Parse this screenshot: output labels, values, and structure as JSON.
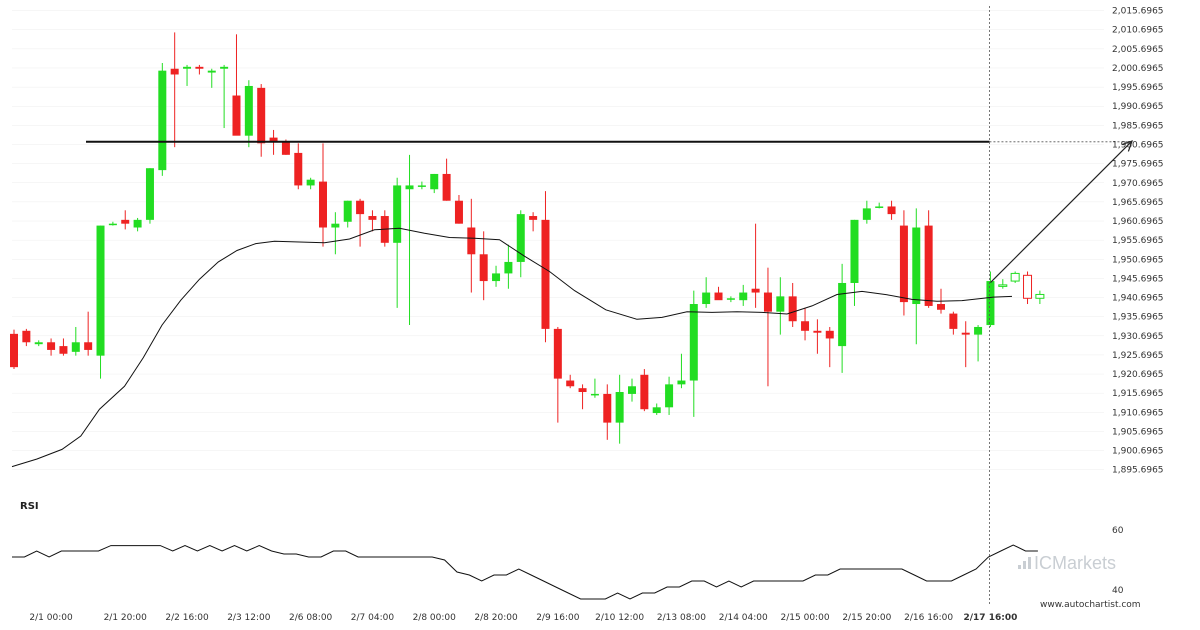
{
  "chart_data": {
    "type": "candlestick",
    "price_axis": {
      "labels": [
        "2,015.6965",
        "2,010.6965",
        "2,005.6965",
        "2,000.6965",
        "1,995.6965",
        "1,990.6965",
        "1,985.6965",
        "1,980.6965",
        "1,975.6965",
        "1,970.6965",
        "1,965.6965",
        "1,960.6965",
        "1,955.6965",
        "1,950.6965",
        "1,945.6965",
        "1,940.6965",
        "1,935.6965",
        "1,930.6965",
        "1,925.6965",
        "1,920.6965",
        "1,915.6965",
        "1,910.6965",
        "1,905.6965",
        "1,900.6965",
        "1,895.6965"
      ],
      "min": 1893.0,
      "max": 2016.9
    },
    "time_axis": {
      "labels": [
        "2/1 00:00",
        "2/1 20:00",
        "2/2 16:00",
        "2/3 12:00",
        "2/6 08:00",
        "2/7 04:00",
        "2/8 00:00",
        "2/8 20:00",
        "2/9 16:00",
        "2/10 12:00",
        "2/13 08:00",
        "2/14 04:00",
        "2/15 00:00",
        "2/15 20:00",
        "2/16 16:00",
        "2/17 16:00"
      ],
      "label_index": [
        3,
        9,
        14,
        19,
        24,
        29,
        34,
        39,
        44,
        49,
        54,
        59,
        64,
        69,
        74,
        79
      ],
      "highlight": "2/17 16:00"
    },
    "candles": [
      [
        1931.2,
        1932.3,
        1922.0,
        1922.5
      ],
      [
        1932.0,
        1932.5,
        1928.0,
        1929.0
      ],
      [
        1928.5,
        1929.5,
        1928.0,
        1929.0
      ],
      [
        1929.0,
        1930.0,
        1925.5,
        1927.0
      ],
      [
        1928.0,
        1930.0,
        1925.5,
        1926.0
      ],
      [
        1926.5,
        1933.0,
        1925.5,
        1929.0
      ],
      [
        1929.0,
        1937.0,
        1925.5,
        1927.0
      ],
      [
        1925.5,
        1959.5,
        1919.5,
        1959.5
      ],
      [
        1960.0,
        1960.5,
        1959.5,
        1960.0
      ],
      [
        1961.0,
        1963.5,
        1958.5,
        1960.0
      ],
      [
        1959.0,
        1961.5,
        1958.0,
        1961.0
      ],
      [
        1961.0,
        1974.5,
        1960.0,
        1974.5
      ],
      [
        1974.0,
        2002.0,
        1972.5,
        2000.0
      ],
      [
        2000.5,
        2010.0,
        1980.0,
        1999.0
      ],
      [
        2000.5,
        2001.5,
        1996.0,
        2001.0
      ],
      [
        2001.0,
        2001.5,
        1999.0,
        2000.5
      ],
      [
        1999.5,
        2000.5,
        1995.5,
        2000.0
      ],
      [
        2000.5,
        2001.5,
        1985.0,
        2001.0
      ],
      [
        1993.5,
        2009.5,
        1984.0,
        1983.0
      ],
      [
        1983.0,
        1997.5,
        1980.0,
        1996.0
      ],
      [
        1995.5,
        1996.5,
        1977.5,
        1981.0
      ],
      [
        1982.5,
        1984.5,
        1978.0,
        1981.5
      ],
      [
        1981.5,
        1982.0,
        1978.0,
        1978.0
      ],
      [
        1978.5,
        1981.0,
        1969.0,
        1970.0
      ],
      [
        1970.0,
        1972.0,
        1969.0,
        1971.5
      ],
      [
        1971.0,
        1981.0,
        1954.0,
        1959.0
      ],
      [
        1959.0,
        1963.0,
        1952.0,
        1960.0
      ],
      [
        1960.5,
        1966.0,
        1959.0,
        1966.0
      ],
      [
        1966.0,
        1966.5,
        1954.0,
        1962.5
      ],
      [
        1962.0,
        1963.5,
        1958.0,
        1961.0
      ],
      [
        1962.0,
        1963.5,
        1954.0,
        1955.0
      ],
      [
        1955.0,
        1972.0,
        1938.0,
        1970.0
      ],
      [
        1969.0,
        1978.0,
        1933.5,
        1970.0
      ],
      [
        1970.0,
        1971.0,
        1969.0,
        1970.0
      ],
      [
        1969.0,
        1973.0,
        1968.0,
        1973.0
      ],
      [
        1973.0,
        1977.0,
        1966.0,
        1966.0
      ],
      [
        1966.0,
        1967.5,
        1960.0,
        1960.0
      ],
      [
        1959.0,
        1966.5,
        1942.0,
        1952.0
      ],
      [
        1952.0,
        1958.0,
        1940.0,
        1945.0
      ],
      [
        1945.0,
        1949.0,
        1943.5,
        1947.0
      ],
      [
        1947.0,
        1954.5,
        1943.0,
        1950.0
      ],
      [
        1950.0,
        1963.5,
        1946.0,
        1962.5
      ],
      [
        1962.0,
        1963.0,
        1958.0,
        1961.0
      ],
      [
        1961.0,
        1968.5,
        1929.0,
        1932.5
      ],
      [
        1932.5,
        1933.0,
        1908.0,
        1919.5
      ],
      [
        1919.0,
        1920.5,
        1917.0,
        1917.5
      ],
      [
        1917.0,
        1918.0,
        1911.5,
        1916.0
      ],
      [
        1915.5,
        1919.5,
        1914.5,
        1915.5
      ],
      [
        1915.5,
        1918.0,
        1903.5,
        1908.0
      ],
      [
        1908.0,
        1920.5,
        1902.5,
        1916.0
      ],
      [
        1915.5,
        1919.5,
        1913.5,
        1917.5
      ],
      [
        1920.5,
        1922.0,
        1911.0,
        1911.5
      ],
      [
        1910.5,
        1913.0,
        1910.0,
        1912.0
      ],
      [
        1912.0,
        1920.0,
        1910.0,
        1918.0
      ],
      [
        1918.0,
        1926.0,
        1917.0,
        1919.0
      ],
      [
        1919.0,
        1942.5,
        1909.5,
        1939.0
      ],
      [
        1939.0,
        1946.0,
        1938.0,
        1942.0
      ],
      [
        1942.0,
        1943.5,
        1940.5,
        1940.0
      ],
      [
        1940.5,
        1941.0,
        1939.5,
        1940.5
      ],
      [
        1940.0,
        1944.0,
        1938.5,
        1942.0
      ],
      [
        1943.0,
        1960.0,
        1938.0,
        1942.0
      ],
      [
        1942.0,
        1948.5,
        1917.5,
        1937.0
      ],
      [
        1937.0,
        1946.0,
        1931.0,
        1941.0
      ],
      [
        1941.0,
        1944.5,
        1933.0,
        1934.5
      ],
      [
        1934.5,
        1938.0,
        1929.5,
        1932.0
      ],
      [
        1932.0,
        1935.0,
        1926.0,
        1931.5
      ],
      [
        1932.0,
        1933.0,
        1922.5,
        1930.0
      ],
      [
        1928.0,
        1949.5,
        1921.0,
        1944.5
      ],
      [
        1944.5,
        1961.0,
        1938.5,
        1961.0
      ],
      [
        1961.0,
        1966.0,
        1960.0,
        1964.0
      ],
      [
        1964.5,
        1965.5,
        1964.0,
        1964.5
      ],
      [
        1964.5,
        1966.0,
        1961.0,
        1962.5
      ],
      [
        1959.5,
        1963.5,
        1936.0,
        1939.5
      ],
      [
        1939.0,
        1964.0,
        1928.5,
        1959.0
      ],
      [
        1959.5,
        1963.5,
        1938.0,
        1938.5
      ],
      [
        1939.0,
        1943.0,
        1936.5,
        1937.5
      ],
      [
        1936.5,
        1937.0,
        1931.0,
        1932.5
      ],
      [
        1931.5,
        1934.5,
        1922.5,
        1931.0
      ],
      [
        1931.0,
        1933.5,
        1924.0,
        1933.0
      ],
      [
        1933.5,
        1947.5,
        1933.0,
        1945.0
      ],
      [
        1944.0,
        1945.5,
        1943.0,
        1944.0
      ],
      [
        1945.0,
        1947.5,
        1944.5,
        1947.0
      ],
      [
        1946.5,
        1947.5,
        1939.0,
        1940.5
      ],
      [
        1940.5,
        1942.5,
        1939.0,
        1941.5
      ]
    ],
    "moving_average": [
      [
        0,
        1896.5
      ],
      [
        4,
        1898.5
      ],
      [
        8,
        1901.0
      ],
      [
        11,
        1904.5
      ],
      [
        14,
        1911.5
      ],
      [
        18,
        1917.5
      ],
      [
        21,
        1925.0
      ],
      [
        24,
        1933.5
      ],
      [
        27,
        1940.0
      ],
      [
        30,
        1945.5
      ],
      [
        33,
        1950.0
      ],
      [
        36,
        1953.0
      ],
      [
        39,
        1954.8
      ],
      [
        42,
        1955.4
      ],
      [
        46,
        1955.2
      ],
      [
        50,
        1955.0
      ],
      [
        54,
        1956.0
      ],
      [
        58,
        1958.4
      ],
      [
        62,
        1958.8
      ],
      [
        66,
        1957.5
      ],
      [
        70,
        1956.4
      ],
      [
        74,
        1956.2
      ],
      [
        78,
        1955.8
      ],
      [
        82,
        1951.5
      ],
      [
        86,
        1947.5
      ],
      [
        90,
        1942.5
      ],
      [
        95,
        1937.5
      ],
      [
        100,
        1935.0
      ],
      [
        104,
        1935.5
      ],
      [
        108,
        1937.0
      ],
      [
        112,
        1936.8
      ],
      [
        116,
        1937.0
      ],
      [
        120,
        1936.8
      ],
      [
        124,
        1936.4
      ],
      [
        128,
        1938.5
      ],
      [
        132,
        1941.5
      ],
      [
        136,
        1942.3
      ],
      [
        140,
        1941.4
      ],
      [
        144,
        1940.2
      ],
      [
        148,
        1939.7
      ],
      [
        152,
        1939.9
      ],
      [
        157,
        1940.8
      ],
      [
        160,
        1941.0
      ]
    ],
    "resistance_level": 1981.4,
    "forecast": {
      "from_index": 79,
      "from_price": 1944.6,
      "to_price": 1981.6
    },
    "rsi": {
      "label": "RSI",
      "ticks": [
        60,
        40
      ],
      "min": 35,
      "max": 65,
      "values": [
        51,
        51,
        53,
        51,
        53,
        53,
        53,
        53,
        54.8,
        54.8,
        54.8,
        54.8,
        54.8,
        53,
        54.8,
        53,
        54.8,
        53,
        54.8,
        53,
        54.8,
        53,
        52,
        52,
        51,
        51,
        53,
        53,
        51,
        51,
        51,
        51,
        51,
        51,
        51,
        50,
        46,
        45,
        43,
        45,
        45,
        47,
        45,
        43,
        41,
        39,
        37,
        37,
        37,
        39,
        37,
        39,
        39,
        41,
        41,
        43,
        43,
        41,
        43,
        41,
        43,
        43,
        43,
        43,
        43,
        45,
        45,
        47,
        47,
        47,
        47,
        47,
        47,
        45,
        43,
        43,
        43,
        45,
        47,
        51,
        53,
        55,
        53,
        53
      ],
      "x_offset": 0
    }
  },
  "watermark": {
    "brand": "ICMarkets"
  },
  "site": "www.autochartist.com",
  "colors": {
    "bull": "#22dd22",
    "bear": "#ee2222",
    "line": "#111111",
    "grid": "#eeeeee",
    "watermark": "#c9ced3"
  }
}
